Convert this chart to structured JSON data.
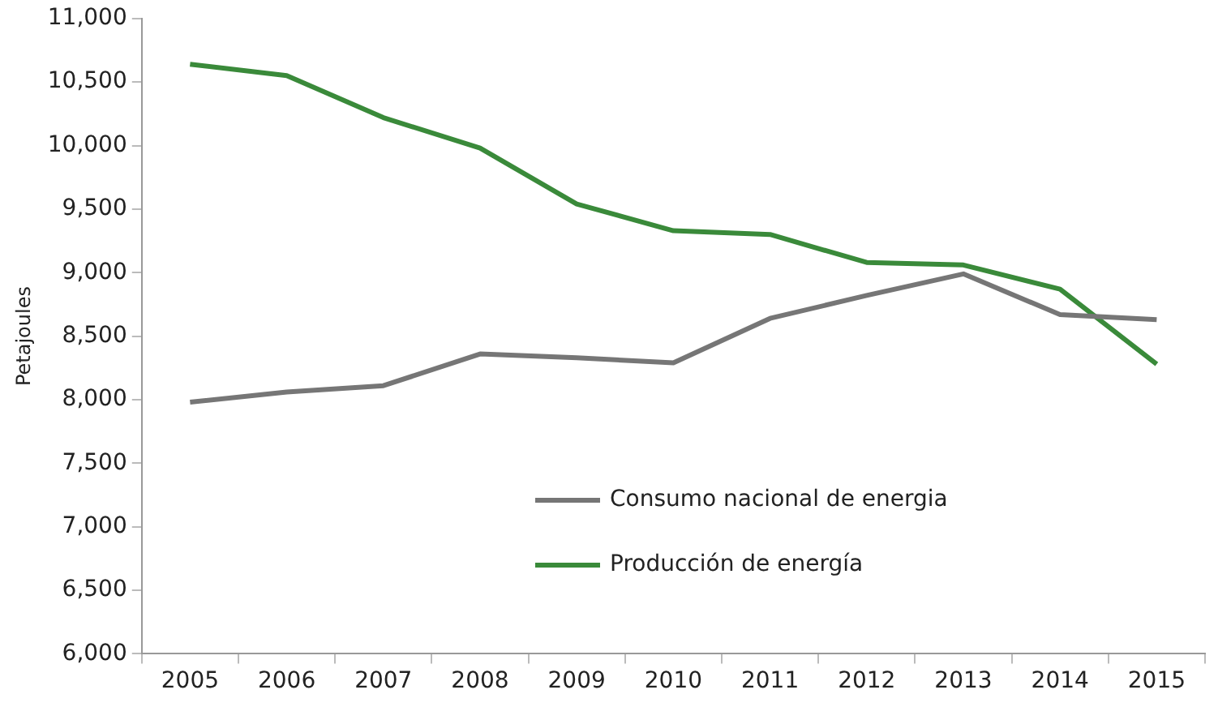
{
  "chart_data": {
    "type": "line",
    "ylabel": "Petajoules",
    "categories": [
      "2005",
      "2006",
      "2007",
      "2008",
      "2009",
      "2010",
      "2011",
      "2012",
      "2013",
      "2014",
      "2015"
    ],
    "series": [
      {
        "name": "Consumo nacional de energia",
        "color": "#767676",
        "values": [
          7980,
          8060,
          8110,
          8360,
          8330,
          8290,
          8640,
          8820,
          8990,
          8670,
          8630
        ]
      },
      {
        "name": "Producción de energía",
        "color": "#3a8a3a",
        "values": [
          10640,
          10550,
          10220,
          9980,
          9540,
          9330,
          9300,
          9080,
          9060,
          8870,
          8280
        ]
      }
    ],
    "ylim": [
      6000,
      11000
    ],
    "yticks": [
      {
        "value": 6000,
        "label": "6,000"
      },
      {
        "value": 6500,
        "label": "6,500"
      },
      {
        "value": 7000,
        "label": "7,000"
      },
      {
        "value": 7500,
        "label": "7,500"
      },
      {
        "value": 8000,
        "label": "8,000"
      },
      {
        "value": 8500,
        "label": "8,500"
      },
      {
        "value": 9000,
        "label": "9,000"
      },
      {
        "value": 9500,
        "label": "9,500"
      },
      {
        "value": 10000,
        "label": "10,000"
      },
      {
        "value": 10500,
        "label": "10,500"
      },
      {
        "value": 11000,
        "label": "11,000"
      }
    ],
    "grid": false,
    "legend": "bottom",
    "marker": "none",
    "line_style": "solid"
  }
}
